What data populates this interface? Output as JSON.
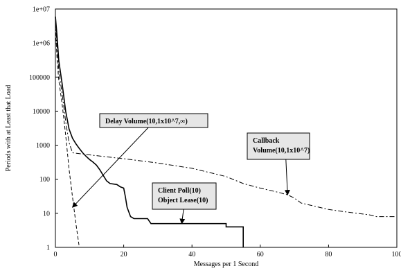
{
  "chart_data": {
    "type": "line",
    "xlabel": "Messages per 1 Second",
    "ylabel": "Periods with at Least that Load",
    "xlim": [
      0,
      100
    ],
    "ylim": [
      1,
      10000000
    ],
    "yscale": "log",
    "grid": false,
    "x_ticks": [
      0,
      20,
      40,
      60,
      80,
      100
    ],
    "x_tick_labels": [
      "0",
      "20",
      "40",
      "60",
      "80",
      "100"
    ],
    "y_ticks": [
      1,
      10,
      100,
      1000,
      10000,
      100000,
      1000000,
      10000000
    ],
    "y_tick_labels": [
      "1",
      "10",
      "100",
      "1000",
      "10000",
      "100000",
      "1e+06",
      "1e+07"
    ],
    "series": [
      {
        "style": "solid",
        "points": [
          [
            0,
            6000000
          ],
          [
            0.5,
            1500000
          ],
          [
            1,
            300000
          ],
          [
            2,
            60000
          ],
          [
            3,
            10000
          ],
          [
            4,
            3000
          ],
          [
            5,
            1600
          ],
          [
            6,
            1100
          ],
          [
            7,
            800
          ],
          [
            8,
            600
          ],
          [
            9,
            470
          ],
          [
            10,
            380
          ],
          [
            11,
            320
          ],
          [
            12,
            260
          ],
          [
            13,
            190
          ],
          [
            14,
            130
          ],
          [
            15,
            90
          ],
          [
            16,
            75
          ],
          [
            18,
            70
          ],
          [
            19,
            60
          ],
          [
            20,
            55
          ],
          [
            20.5,
            30
          ],
          [
            21,
            15
          ],
          [
            22,
            8
          ],
          [
            23,
            7
          ],
          [
            27,
            7
          ],
          [
            28,
            5
          ],
          [
            50,
            5
          ],
          [
            50,
            4
          ],
          [
            55,
            4
          ],
          [
            55,
            1
          ]
        ]
      },
      {
        "style": "dash-dot",
        "points": [
          [
            0,
            4000000
          ],
          [
            0.5,
            800000
          ],
          [
            1,
            150000
          ],
          [
            2,
            30000
          ],
          [
            3,
            5000
          ],
          [
            4,
            1200
          ],
          [
            5,
            600
          ],
          [
            10,
            520
          ],
          [
            20,
            400
          ],
          [
            30,
            300
          ],
          [
            40,
            210
          ],
          [
            50,
            120
          ],
          [
            55,
            75
          ],
          [
            60,
            55
          ],
          [
            65,
            42
          ],
          [
            68,
            35
          ],
          [
            70,
            28
          ],
          [
            72,
            20
          ],
          [
            75,
            17
          ],
          [
            80,
            13
          ],
          [
            85,
            11
          ],
          [
            92,
            9
          ],
          [
            94,
            8
          ],
          [
            100,
            8
          ]
        ]
      },
      {
        "style": "dashed",
        "points": [
          [
            0,
            3000000
          ],
          [
            0.5,
            300000
          ],
          [
            1,
            80000
          ],
          [
            2,
            15000
          ],
          [
            3,
            2000
          ],
          [
            4,
            200
          ],
          [
            5,
            30
          ],
          [
            6,
            5
          ],
          [
            7,
            1
          ]
        ]
      }
    ],
    "annotations": [
      {
        "lines": [
          "Delay Volume(10,1x10^7,∞)"
        ],
        "arrow_to": [
          5,
          15
        ]
      },
      {
        "lines": [
          "Callback",
          "Volume(10,1x10^7)"
        ],
        "arrow_to": [
          68,
          35
        ]
      },
      {
        "lines": [
          "Client Poll(10)",
          "Object Lease(10)"
        ],
        "arrow_to": [
          37,
          5
        ]
      }
    ]
  }
}
